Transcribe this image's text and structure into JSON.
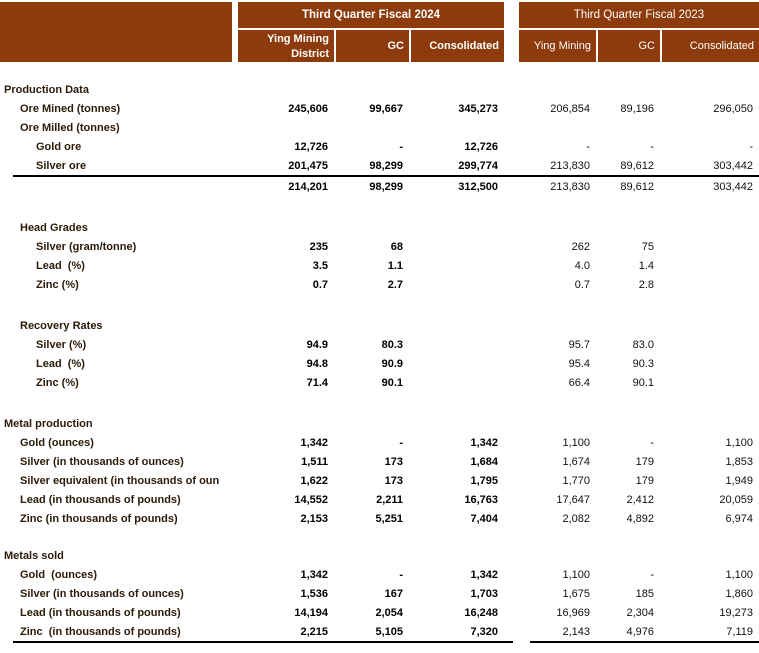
{
  "colors": {
    "header_bg": "#8D3B0C",
    "header_text": "#FFFFFF",
    "label_text": "#2B1A08",
    "value_text": "#000000",
    "rule": "#000000"
  },
  "header": {
    "period_2024": "Third Quarter Fiscal 2024",
    "period_2023": "Third Quarter Fiscal 2023",
    "columns_2024": [
      "Ying Mining District",
      "GC",
      "Consolidated"
    ],
    "columns_2023": [
      "Ying Mining",
      "GC",
      "Consolidated"
    ]
  },
  "rows": [
    {
      "label": "Production Data",
      "indent": 0,
      "section": true,
      "gap": 18,
      "v": [
        "",
        "",
        "",
        "",
        "",
        ""
      ]
    },
    {
      "label": "Ore Mined (tonnes)",
      "indent": 1,
      "v": [
        "245,606",
        "99,667",
        "345,273",
        "206,854",
        "89,196",
        "296,050"
      ]
    },
    {
      "label": "Ore Milled (tonnes)",
      "indent": 1,
      "v": [
        "",
        "",
        "",
        "",
        "",
        ""
      ]
    },
    {
      "label": "Gold ore",
      "indent": 2,
      "v": [
        "12,726",
        "-",
        "12,726",
        "-",
        "-",
        "-"
      ]
    },
    {
      "label": "Silver ore",
      "indent": 2,
      "v": [
        "201,475",
        "98,299",
        "299,774",
        "213,830",
        "89,612",
        "303,442"
      ],
      "rule_below": "full"
    },
    {
      "label": "",
      "indent": 0,
      "total": true,
      "v": [
        "214,201",
        "98,299",
        "312,500",
        "213,830",
        "89,612",
        "303,442"
      ]
    },
    {
      "label": "Head Grades",
      "indent": 1,
      "section": true,
      "gap": 22,
      "v": [
        "",
        "",
        "",
        "",
        "",
        ""
      ]
    },
    {
      "label": "Silver (gram/tonne)",
      "indent": 2,
      "v": [
        "235",
        "68",
        "",
        "262",
        "75",
        ""
      ]
    },
    {
      "label": "Lead  (%)",
      "indent": 2,
      "v": [
        "3.5",
        "1.1",
        "",
        "4.0",
        "1.4",
        ""
      ]
    },
    {
      "label": "Zinc (%)",
      "indent": 2,
      "v": [
        "0.7",
        "2.7",
        "",
        "0.7",
        "2.8",
        ""
      ]
    },
    {
      "label": "Recovery Rates",
      "indent": 1,
      "section": true,
      "gap": 22,
      "v": [
        "",
        "",
        "",
        "",
        "",
        ""
      ]
    },
    {
      "label": "Silver (%)",
      "indent": 2,
      "v": [
        "94.9",
        "80.3",
        "",
        "95.7",
        "83.0",
        ""
      ]
    },
    {
      "label": "Lead  (%)",
      "indent": 2,
      "v": [
        "94.8",
        "90.9",
        "",
        "95.4",
        "90.3",
        ""
      ]
    },
    {
      "label": "Zinc (%)",
      "indent": 2,
      "v": [
        "71.4",
        "90.1",
        "",
        "66.4",
        "90.1",
        ""
      ]
    },
    {
      "label": "Metal production",
      "indent": 0,
      "section": true,
      "gap": 22,
      "v": [
        "",
        "",
        "",
        "",
        "",
        ""
      ]
    },
    {
      "label": "Gold (ounces)",
      "indent": 1,
      "v": [
        "1,342",
        "-",
        "1,342",
        "1,100",
        "-",
        "1,100"
      ]
    },
    {
      "label": "Silver (in thousands of ounces)",
      "indent": 1,
      "v": [
        "1,511",
        "173",
        "1,684",
        "1,674",
        "179",
        "1,853"
      ]
    },
    {
      "label": "Silver equivalent (in thousands of oun",
      "indent": 1,
      "v": [
        "1,622",
        "173",
        "1,795",
        "1,770",
        "179",
        "1,949"
      ]
    },
    {
      "label": "Lead (in thousands of pounds)",
      "indent": 1,
      "v": [
        "14,552",
        "2,211",
        "16,763",
        "17,647",
        "2,412",
        "20,059"
      ]
    },
    {
      "label": "Zinc (in thousands of pounds)",
      "indent": 1,
      "v": [
        "2,153",
        "5,251",
        "7,404",
        "2,082",
        "4,892",
        "6,974"
      ]
    },
    {
      "label": "Metals sold",
      "indent": 0,
      "section": true,
      "gap": 18,
      "v": [
        "",
        "",
        "",
        "",
        "",
        ""
      ]
    },
    {
      "label": "Gold  (ounces)",
      "indent": 1,
      "v": [
        "1,342",
        "-",
        "1,342",
        "1,100",
        "-",
        "1,100"
      ]
    },
    {
      "label": "Silver (in thousands of ounces)",
      "indent": 1,
      "v": [
        "1,536",
        "167",
        "1,703",
        "1,675",
        "185",
        "1,860"
      ]
    },
    {
      "label": "Lead (in thousands of pounds)",
      "indent": 1,
      "v": [
        "14,194",
        "2,054",
        "16,248",
        "16,969",
        "2,304",
        "19,273"
      ]
    },
    {
      "label": "Zinc  (in thousands of pounds)",
      "indent": 1,
      "v": [
        "2,215",
        "5,105",
        "7,320",
        "2,143",
        "4,976",
        "7,119"
      ],
      "rule_below": "split"
    }
  ]
}
